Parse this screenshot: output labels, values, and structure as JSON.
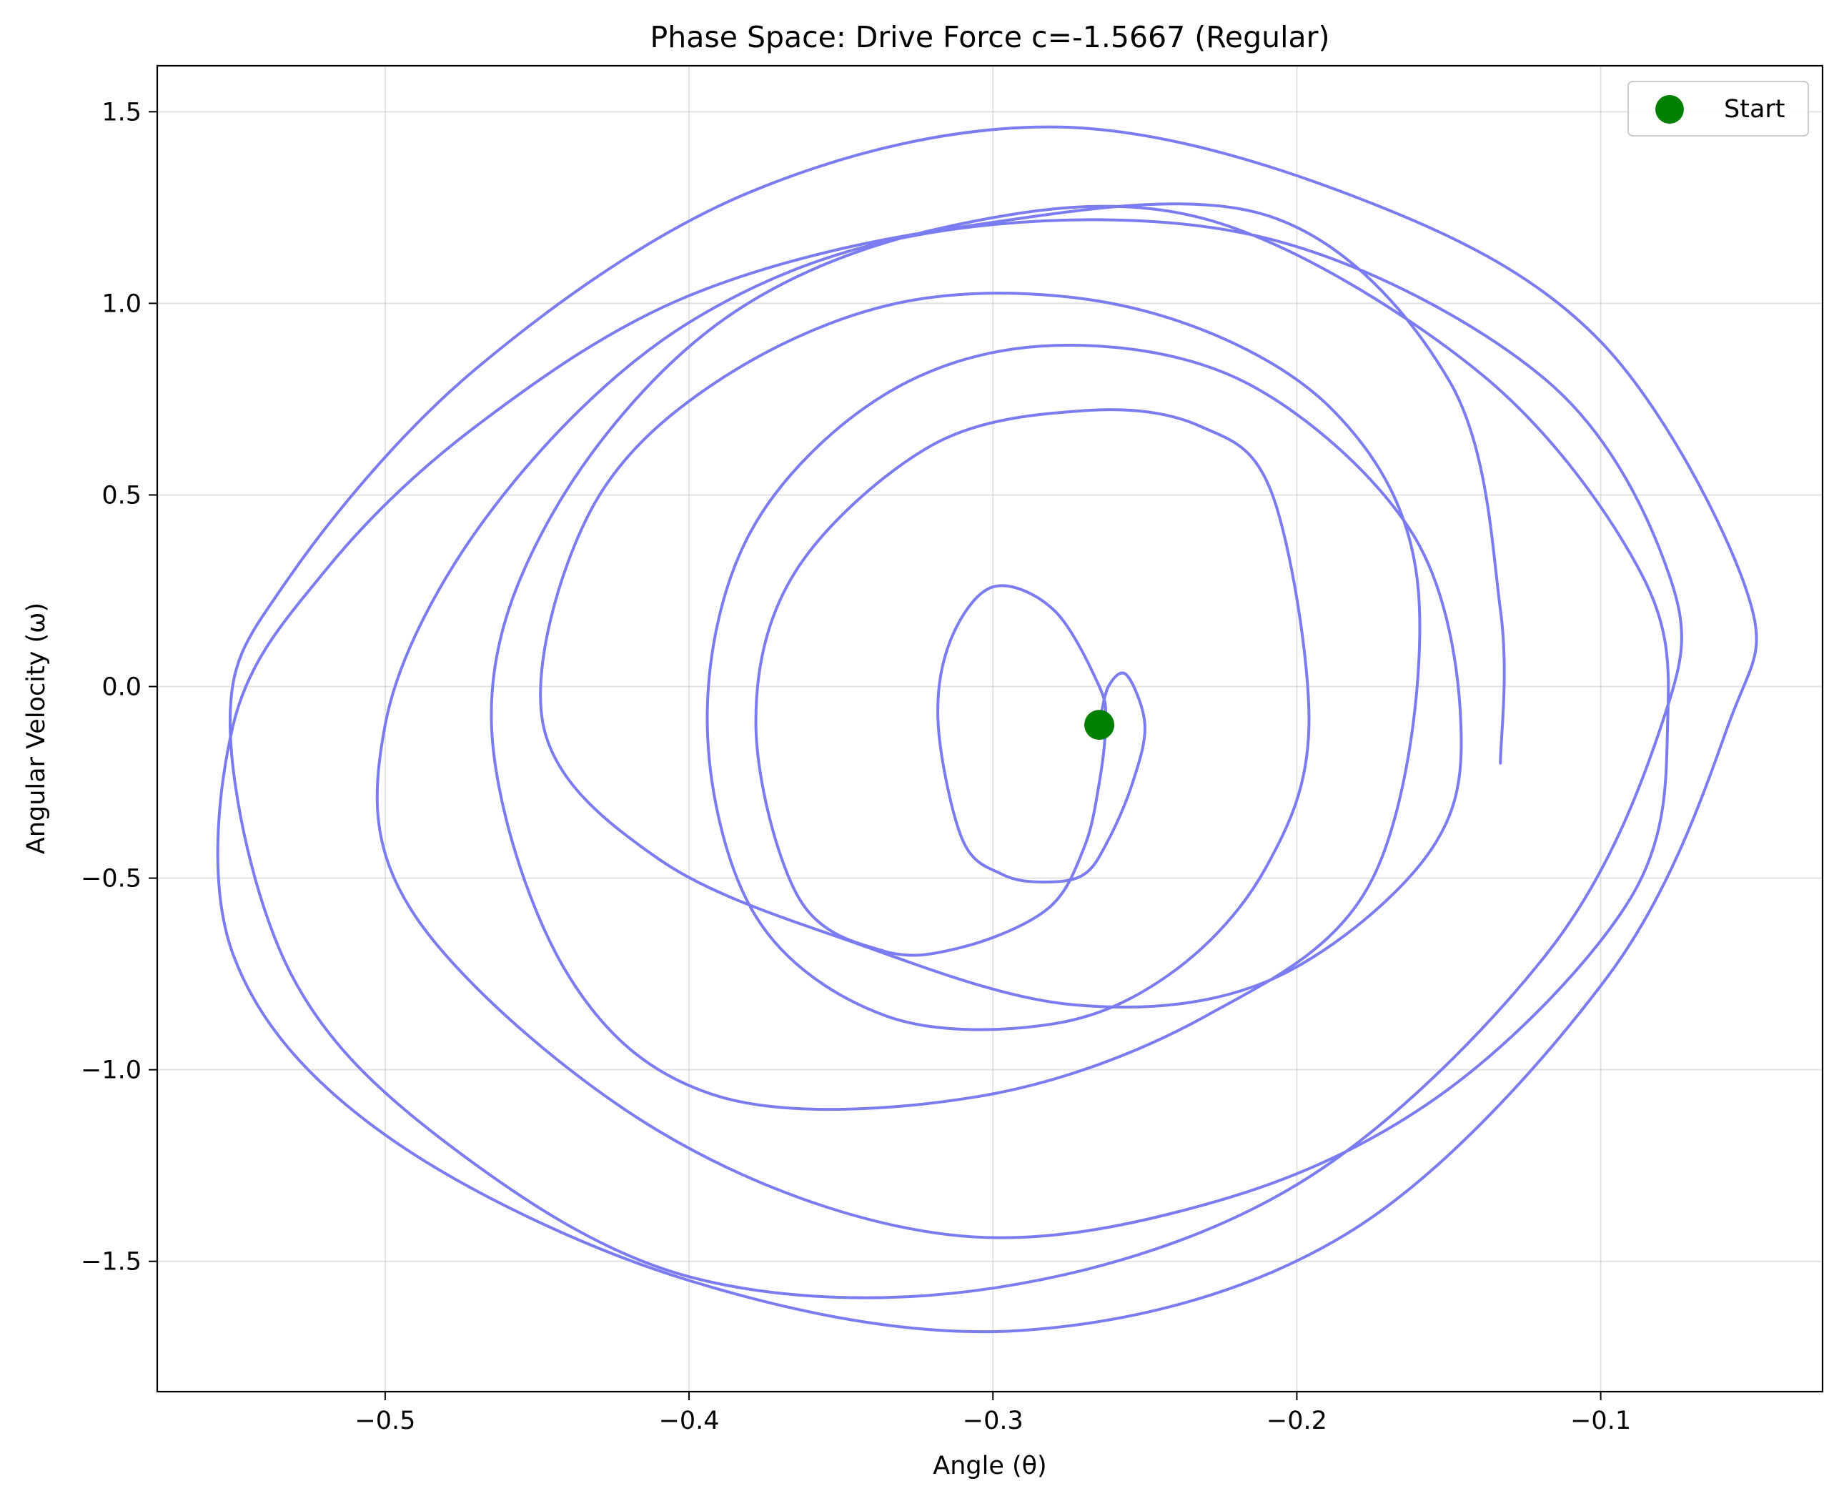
{
  "chart_data": {
    "type": "line",
    "title": "Phase Space: Drive Force c=-1.5667 (Regular)",
    "xlabel": "Angle (θ)",
    "ylabel": "Angular Velocity (ω)",
    "xlim": [
      -0.575,
      -0.027
    ],
    "ylim": [
      -1.84,
      1.62
    ],
    "x_ticks": [
      -0.5,
      -0.4,
      -0.3,
      -0.2,
      -0.1
    ],
    "x_tick_labels": [
      "−0.5",
      "−0.4",
      "−0.3",
      "−0.2",
      "−0.1"
    ],
    "y_ticks": [
      1.5,
      1.0,
      0.5,
      0.0,
      -0.5,
      -1.0,
      -1.5
    ],
    "y_tick_labels": [
      "1.5",
      "1.0",
      "0.5",
      "0.0",
      "−0.5",
      "−1.0",
      "−1.5"
    ],
    "grid": true,
    "legend": {
      "placement": "top-right",
      "entries": [
        {
          "label": "Start",
          "color": "#008000"
        }
      ]
    },
    "series": [
      {
        "color": "#7b7bf2",
        "x": [
          -0.265,
          -0.262,
          -0.256,
          -0.25,
          -0.254,
          -0.262,
          -0.27,
          -0.283,
          -0.297,
          -0.31,
          -0.318,
          -0.314,
          -0.3,
          -0.28,
          -0.265,
          -0.263,
          -0.265,
          -0.27,
          -0.282,
          -0.31,
          -0.336,
          -0.364,
          -0.378,
          -0.365,
          -0.32,
          -0.27,
          -0.232,
          -0.208,
          -0.196,
          -0.21,
          -0.24,
          -0.28,
          -0.335,
          -0.378,
          -0.394,
          -0.38,
          -0.336,
          -0.28,
          -0.216,
          -0.162,
          -0.146,
          -0.158,
          -0.21,
          -0.274,
          -0.345,
          -0.41,
          -0.448,
          -0.433,
          -0.39,
          -0.325,
          -0.25,
          -0.188,
          -0.16,
          -0.175,
          -0.23,
          -0.305,
          -0.39,
          -0.44,
          -0.465,
          -0.445,
          -0.39,
          -0.315,
          -0.23,
          -0.14,
          -0.087,
          -0.078,
          -0.09,
          -0.15,
          -0.225,
          -0.315,
          -0.41,
          -0.49,
          -0.5,
          -0.465,
          -0.4,
          -0.316,
          -0.21,
          -0.118,
          -0.077,
          -0.08,
          -0.118,
          -0.2,
          -0.3,
          -0.4,
          -0.48,
          -0.531,
          -0.551,
          -0.532,
          -0.47,
          -0.38,
          -0.278,
          -0.175,
          -0.1,
          -0.052,
          -0.058,
          -0.098,
          -0.184,
          -0.29,
          -0.4,
          -0.5,
          -0.55,
          -0.55,
          -0.52,
          -0.47,
          -0.4,
          -0.31,
          -0.21,
          -0.15,
          -0.133,
          -0.133
        ],
        "y": [
          -0.1,
          0.0,
          0.03,
          -0.1,
          -0.25,
          -0.4,
          -0.49,
          -0.51,
          -0.49,
          -0.4,
          -0.1,
          0.12,
          0.26,
          0.2,
          0.0,
          -0.1,
          -0.25,
          -0.42,
          -0.58,
          -0.68,
          -0.69,
          -0.55,
          -0.1,
          0.3,
          0.63,
          0.72,
          0.68,
          0.5,
          -0.1,
          -0.47,
          -0.74,
          -0.88,
          -0.86,
          -0.6,
          -0.1,
          0.4,
          0.76,
          0.89,
          0.79,
          0.4,
          -0.1,
          -0.45,
          -0.77,
          -0.83,
          -0.67,
          -0.45,
          -0.1,
          0.45,
          0.8,
          1.01,
          0.98,
          0.72,
          0.25,
          -0.5,
          -0.86,
          -1.07,
          -1.07,
          -0.75,
          -0.1,
          0.45,
          0.95,
          1.2,
          1.22,
          0.82,
          0.3,
          -0.1,
          -0.55,
          -1.05,
          -1.34,
          -1.43,
          -1.16,
          -0.6,
          -0.1,
          0.46,
          0.95,
          1.19,
          1.17,
          0.8,
          0.28,
          -0.1,
          -0.7,
          -1.3,
          -1.57,
          -1.54,
          -1.19,
          -0.75,
          -0.1,
          0.28,
          0.83,
          1.29,
          1.46,
          1.26,
          0.9,
          0.25,
          -0.1,
          -0.76,
          -1.43,
          -1.68,
          -1.55,
          -1.17,
          -0.7,
          -0.1,
          0.3,
          0.68,
          1.02,
          1.2,
          1.23,
          0.8,
          0.2,
          -0.2
        ]
      }
    ],
    "markers": [
      {
        "label": "Start",
        "x": -0.265,
        "y": -0.1,
        "color": "#008000"
      }
    ]
  }
}
